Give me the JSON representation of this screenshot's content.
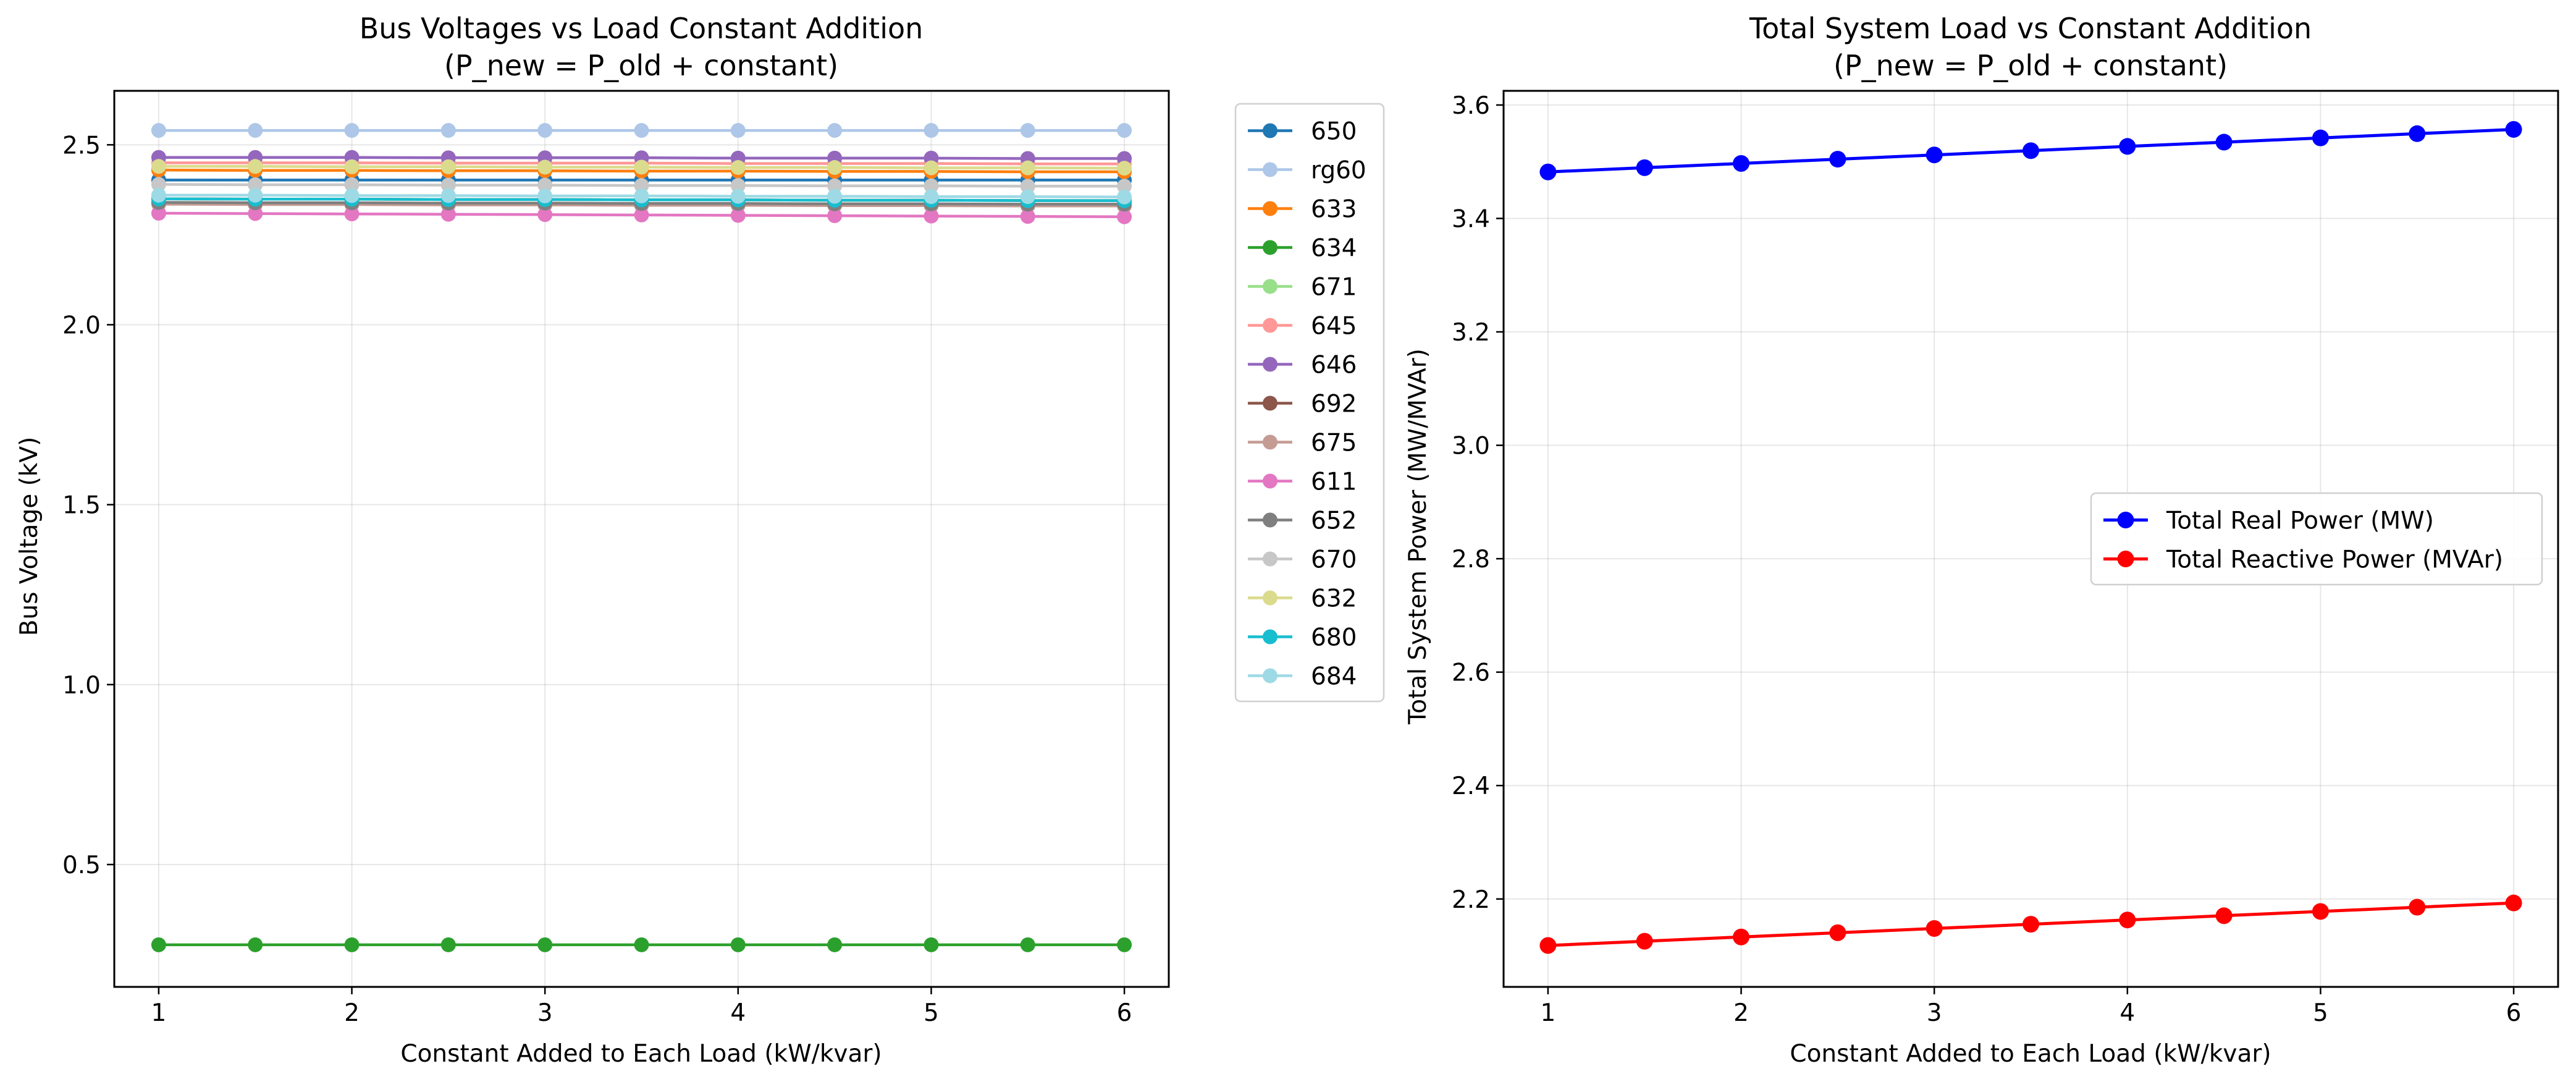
{
  "chart_data": [
    {
      "type": "line",
      "title_line1": "Bus Voltages vs Load Constant Addition",
      "title_line2": "(P_new = P_old + constant)",
      "xlabel": "Constant Added to Each Load (kW/kvar)",
      "ylabel": "Bus Voltage (kV)",
      "xlim": [
        0.77,
        6.23
      ],
      "ylim": [
        0.16,
        2.65
      ],
      "xticks": [
        1,
        2,
        3,
        4,
        5,
        6
      ],
      "yticks": [
        0.5,
        1.0,
        1.5,
        2.0,
        2.5
      ],
      "ytick_labels": [
        "0.5",
        "1.0",
        "1.5",
        "2.0",
        "2.5"
      ],
      "grid": true,
      "legend_position": "outside-right",
      "x": [
        1,
        1.5,
        2,
        2.5,
        3,
        3.5,
        4,
        4.5,
        5,
        5.5,
        6
      ],
      "series": [
        {
          "name": "650",
          "color": "#1f77b4",
          "values": [
            2.402,
            2.402,
            2.402,
            2.402,
            2.402,
            2.402,
            2.402,
            2.402,
            2.402,
            2.402,
            2.402
          ]
        },
        {
          "name": "rg60",
          "color": "#aec7e8",
          "values": [
            2.54,
            2.54,
            2.54,
            2.54,
            2.54,
            2.54,
            2.54,
            2.54,
            2.54,
            2.54,
            2.54
          ]
        },
        {
          "name": "633",
          "color": "#ff7f0e",
          "values": [
            2.43,
            2.429,
            2.429,
            2.428,
            2.428,
            2.427,
            2.427,
            2.426,
            2.426,
            2.425,
            2.425
          ]
        },
        {
          "name": "634",
          "color": "#2ca02c",
          "values": [
            0.277,
            0.277,
            0.277,
            0.277,
            0.277,
            0.277,
            0.277,
            0.277,
            0.277,
            0.277,
            0.277
          ]
        },
        {
          "name": "671",
          "color": "#98df8a",
          "values": [
            2.35,
            2.349,
            2.349,
            2.348,
            2.348,
            2.347,
            2.347,
            2.346,
            2.346,
            2.345,
            2.345
          ]
        },
        {
          "name": "645",
          "color": "#ff9896",
          "values": [
            2.45,
            2.45,
            2.45,
            2.449,
            2.449,
            2.449,
            2.448,
            2.448,
            2.448,
            2.447,
            2.447
          ]
        },
        {
          "name": "646",
          "color": "#9467bd",
          "values": [
            2.465,
            2.465,
            2.465,
            2.464,
            2.464,
            2.464,
            2.463,
            2.463,
            2.463,
            2.462,
            2.462
          ]
        },
        {
          "name": "692",
          "color": "#8c564b",
          "values": [
            2.35,
            2.349,
            2.349,
            2.348,
            2.348,
            2.347,
            2.347,
            2.346,
            2.346,
            2.345,
            2.345
          ]
        },
        {
          "name": "675",
          "color": "#c49c94",
          "values": [
            2.335,
            2.334,
            2.334,
            2.333,
            2.333,
            2.332,
            2.332,
            2.331,
            2.331,
            2.33,
            2.33
          ]
        },
        {
          "name": "611",
          "color": "#e377c2",
          "values": [
            2.31,
            2.309,
            2.308,
            2.307,
            2.306,
            2.305,
            2.304,
            2.303,
            2.302,
            2.301,
            2.3
          ]
        },
        {
          "name": "652",
          "color": "#7f7f7f",
          "values": [
            2.34,
            2.339,
            2.339,
            2.338,
            2.338,
            2.337,
            2.337,
            2.336,
            2.336,
            2.335,
            2.335
          ]
        },
        {
          "name": "670",
          "color": "#c7c7c7",
          "values": [
            2.39,
            2.389,
            2.389,
            2.388,
            2.388,
            2.387,
            2.387,
            2.386,
            2.386,
            2.385,
            2.385
          ]
        },
        {
          "name": "632",
          "color": "#dbdb8d",
          "values": [
            2.44,
            2.44,
            2.439,
            2.439,
            2.438,
            2.438,
            2.437,
            2.437,
            2.436,
            2.436,
            2.435
          ]
        },
        {
          "name": "680",
          "color": "#17becf",
          "values": [
            2.35,
            2.349,
            2.349,
            2.348,
            2.348,
            2.347,
            2.347,
            2.346,
            2.346,
            2.345,
            2.345
          ]
        },
        {
          "name": "684",
          "color": "#9edae5",
          "values": [
            2.36,
            2.36,
            2.359,
            2.359,
            2.358,
            2.358,
            2.357,
            2.357,
            2.356,
            2.356,
            2.355
          ]
        }
      ]
    },
    {
      "type": "line",
      "title_line1": "Total System Load vs Constant Addition",
      "title_line2": "(P_new = P_old + constant)",
      "xlabel": "Constant Added to Each Load (kW/kvar)",
      "ylabel": "Total System Power (MW/MVAr)",
      "xlim": [
        0.77,
        6.23
      ],
      "ylim": [
        2.045,
        3.625
      ],
      "xticks": [
        1,
        2,
        3,
        4,
        5,
        6
      ],
      "yticks": [
        2.2,
        2.4,
        2.6,
        2.8,
        3.0,
        3.2,
        3.4,
        3.6
      ],
      "ytick_labels": [
        "2.2",
        "2.4",
        "2.6",
        "2.8",
        "3.0",
        "3.2",
        "3.4",
        "3.6"
      ],
      "grid": true,
      "legend_position": "center-right",
      "x": [
        1,
        1.5,
        2,
        2.5,
        3,
        3.5,
        4,
        4.5,
        5,
        5.5,
        6
      ],
      "series": [
        {
          "name": "Total Real Power (MW)",
          "color": "#0000ff",
          "values": [
            3.482,
            3.4895,
            3.497,
            3.5045,
            3.512,
            3.5195,
            3.527,
            3.5345,
            3.542,
            3.5495,
            3.557
          ]
        },
        {
          "name": "Total Reactive Power (MVAr)",
          "color": "#ff0000",
          "values": [
            2.118,
            2.1255,
            2.133,
            2.1405,
            2.148,
            2.1555,
            2.163,
            2.1705,
            2.178,
            2.1855,
            2.193
          ]
        }
      ]
    }
  ]
}
